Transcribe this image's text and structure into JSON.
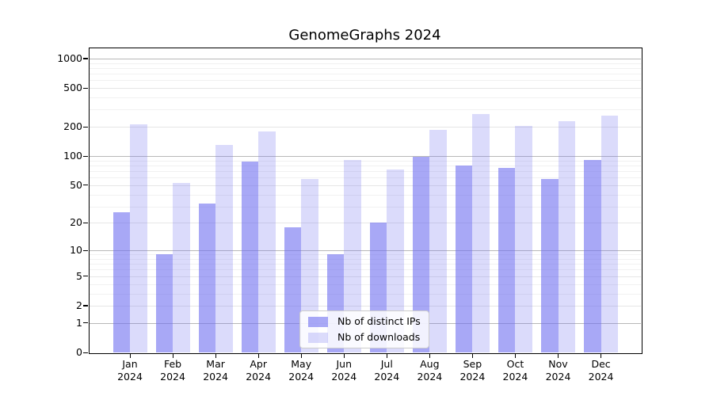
{
  "title": "GenomeGraphs 2024",
  "chart_data": {
    "type": "bar",
    "title": "GenomeGraphs 2024",
    "categories": [
      "Jan 2024",
      "Feb 2024",
      "Mar 2024",
      "Apr 2024",
      "May 2024",
      "Jun 2024",
      "Jul 2024",
      "Aug 2024",
      "Sep 2024",
      "Oct 2024",
      "Nov 2024",
      "Dec 2024"
    ],
    "series": [
      {
        "name": "Nb of distinct IPs",
        "color": "rgba(110,110,240,0.6)",
        "values": [
          26,
          9,
          32,
          88,
          18,
          9,
          20,
          98,
          80,
          76,
          58,
          91
        ]
      },
      {
        "name": "Nb of downloads",
        "color": "rgba(110,110,240,0.25)",
        "values": [
          210,
          53,
          130,
          180,
          58,
          92,
          73,
          185,
          270,
          205,
          230,
          260
        ]
      }
    ],
    "xlabel": "",
    "ylabel": "",
    "y_scale": "log1p",
    "y_tick_values": [
      0,
      1,
      2,
      5,
      10,
      20,
      50,
      100,
      200,
      500,
      1000
    ],
    "ylim": [
      0,
      1300
    ],
    "grid": "on",
    "legend_position": "lower center"
  },
  "colors": {
    "bar_ips": "rgba(110,110,240,0.6)",
    "bar_downloads": "rgba(110,110,240,0.25)",
    "grid_major": "#b8b8b8",
    "grid_mid": "#e6e6e6",
    "grid_minor": "#f1f1f1",
    "spine": "#000000",
    "background": "#ffffff"
  }
}
